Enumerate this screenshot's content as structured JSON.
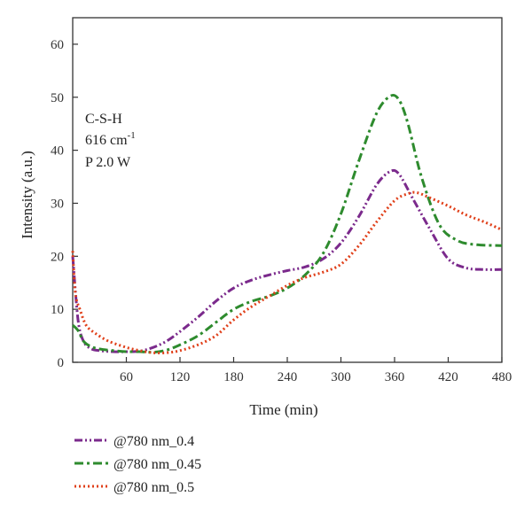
{
  "chart_data": {
    "type": "line",
    "xlabel": "Time (min)",
    "ylabel": "Intensity (a.u.)",
    "xlim": [
      0,
      480
    ],
    "ylim": [
      0,
      65
    ],
    "xticks": [
      60,
      120,
      180,
      240,
      300,
      360,
      420,
      480
    ],
    "yticks": [
      0,
      10,
      20,
      30,
      40,
      50,
      60
    ],
    "grid": false,
    "legend_position": "bottom-left, below plot",
    "annotations": [
      "C-S-H",
      "616 cm",
      "-1",
      "P 2.0 W"
    ],
    "series": [
      {
        "name": "@780 nm_0.4",
        "color": "#7b2a8c",
        "dash": "dash-dot-dot",
        "x": [
          0,
          6,
          12,
          20,
          30,
          45,
          60,
          75,
          90,
          105,
          120,
          140,
          160,
          180,
          200,
          220,
          240,
          260,
          280,
          300,
          320,
          340,
          355,
          365,
          380,
          400,
          420,
          440,
          460,
          480
        ],
        "y": [
          20,
          8,
          4,
          2.6,
          2.2,
          2.0,
          2.0,
          2.1,
          2.8,
          4.0,
          5.8,
          8.5,
          11.5,
          14,
          15.5,
          16.5,
          17.3,
          18.0,
          19.5,
          22.5,
          27.5,
          33.5,
          36.0,
          35.5,
          31,
          25,
          19.5,
          17.8,
          17.5,
          17.5
        ]
      },
      {
        "name": "@780 nm_0.45",
        "color": "#2e8b2e",
        "dash": "dash-dot",
        "x": [
          0,
          6,
          12,
          20,
          30,
          45,
          60,
          75,
          90,
          105,
          120,
          140,
          160,
          180,
          200,
          220,
          240,
          260,
          280,
          300,
          320,
          340,
          355,
          365,
          375,
          390,
          410,
          430,
          450,
          480
        ],
        "y": [
          7,
          6,
          4,
          3.0,
          2.5,
          2.2,
          2.0,
          2.0,
          1.9,
          2.3,
          3.3,
          5.0,
          7.5,
          10,
          11.5,
          12.5,
          14.0,
          16.5,
          20.5,
          28,
          38,
          47,
          50.2,
          49.5,
          45,
          35,
          26,
          23,
          22.2,
          22.0
        ]
      },
      {
        "name": "@780 nm_0.5",
        "color": "#e0401a",
        "dash": "dotted",
        "x": [
          0,
          3,
          8,
          15,
          25,
          40,
          60,
          75,
          90,
          105,
          120,
          140,
          160,
          180,
          200,
          220,
          240,
          260,
          280,
          300,
          320,
          340,
          360,
          375,
          385,
          400,
          420,
          440,
          460,
          480
        ],
        "y": [
          21,
          13,
          10,
          7,
          5.5,
          4.0,
          2.8,
          2.2,
          1.8,
          1.8,
          2.2,
          3.3,
          5.0,
          8,
          10.5,
          12.5,
          14.5,
          16.0,
          17.0,
          18.5,
          22,
          26.5,
          30.5,
          31.8,
          32.0,
          31,
          29.5,
          27.8,
          26.5,
          25.0
        ]
      }
    ]
  }
}
